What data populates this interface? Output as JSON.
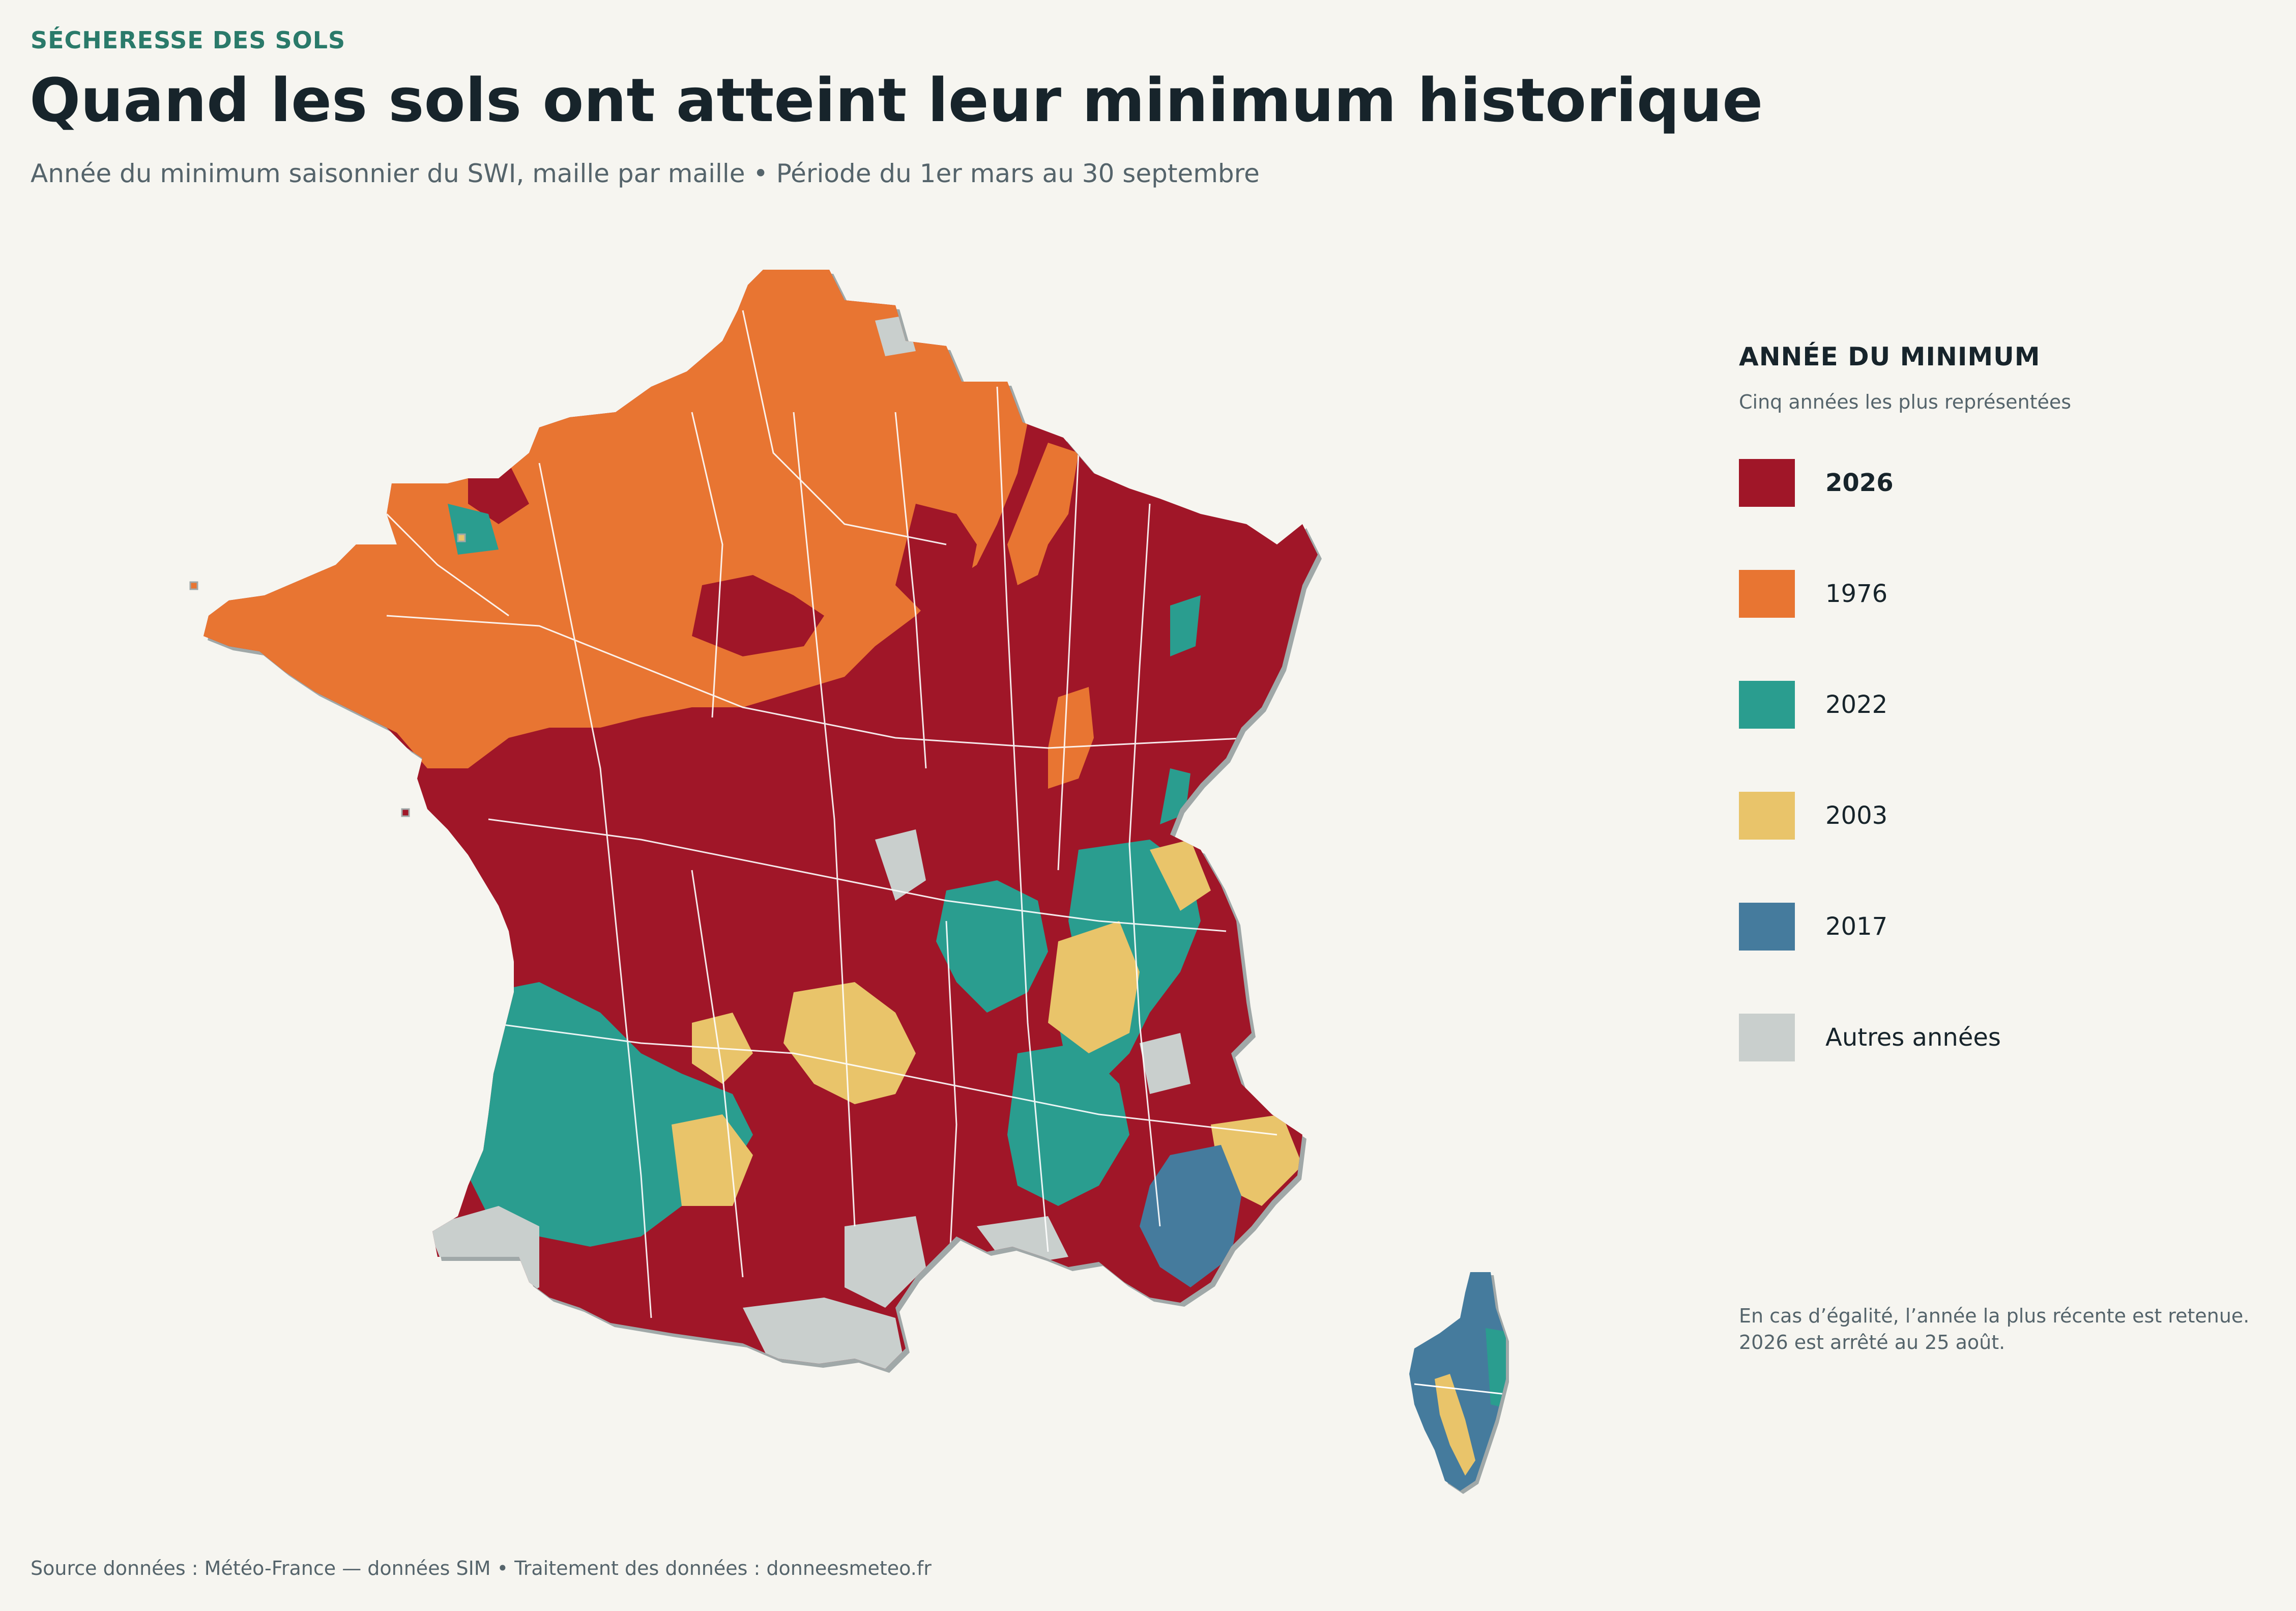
{
  "header": {
    "kicker": "SÉCHERESSE DES SOLS",
    "title": "Quand les sols ont atteint leur minimum historique",
    "subtitle": "Année du minimum saisonnier du SWI, maille par maille  •  Période du 1er mars au 30 septembre"
  },
  "legend": {
    "title": "ANNÉE DU MINIMUM",
    "subtitle": "Cinq années les plus représentées",
    "items": [
      {
        "label": "2026",
        "color": "#a01628",
        "bold": true
      },
      {
        "label": "1976",
        "color": "#e87532",
        "bold": false
      },
      {
        "label": "2022",
        "color": "#2a9d8f",
        "bold": false
      },
      {
        "label": "2003",
        "color": "#e9c46a",
        "bold": false
      },
      {
        "label": "2017",
        "color": "#457b9d",
        "bold": false
      },
      {
        "label": "Autres années",
        "color": "#c9cfcd",
        "bold": false
      }
    ]
  },
  "note": {
    "line1": "En cas d’égalité, l’année la plus récente est retenue.",
    "line2": "2026 est arrêté au 25 août."
  },
  "footer": {
    "source": "Source données : Météo-France — données SIM  •  Traitement des données : donneesmeteo.fr"
  }
}
